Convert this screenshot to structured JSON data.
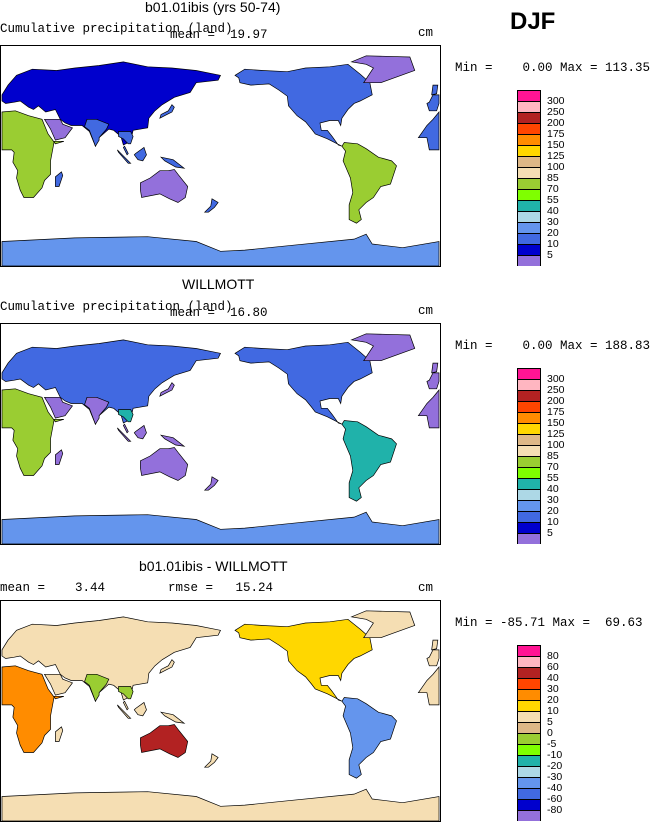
{
  "header": {
    "season": "DJF"
  },
  "panels": [
    {
      "title": "b01.01ibis (yrs 50-74)",
      "subtitle": "Cumulative precipitation (land)",
      "stat1": "mean =  19.97",
      "stat2": "",
      "units": "cm",
      "minmax": "Min =    0.00 Max = 113.35",
      "legend": {
        "labels": [
          "300",
          "250",
          "200",
          "175",
          "150",
          "125",
          "100",
          "85",
          "70",
          "55",
          "40",
          "30",
          "20",
          "10",
          "5"
        ],
        "colors": [
          "#ff1493",
          "#ffb6c1",
          "#b22222",
          "#ff4500",
          "#ff8c00",
          "#ffd700",
          "#deb887",
          "#f5deb3",
          "#9acd32",
          "#7fff00",
          "#20b2aa",
          "#add8e6",
          "#6495ed",
          "#4169e1",
          "#0000cd",
          "#9370db"
        ]
      }
    },
    {
      "title": "WILLMOTT",
      "subtitle": "Cumulative precipitation (land)",
      "stat1": "mean =  16.80",
      "stat2": "",
      "units": "cm",
      "minmax": "Min =    0.00 Max = 188.83",
      "legend": {
        "labels": [
          "300",
          "250",
          "200",
          "175",
          "150",
          "125",
          "100",
          "85",
          "70",
          "55",
          "40",
          "30",
          "20",
          "10",
          "5"
        ],
        "colors": [
          "#ff1493",
          "#ffb6c1",
          "#b22222",
          "#ff4500",
          "#ff8c00",
          "#ffd700",
          "#deb887",
          "#f5deb3",
          "#9acd32",
          "#7fff00",
          "#20b2aa",
          "#add8e6",
          "#6495ed",
          "#4169e1",
          "#0000cd",
          "#9370db"
        ]
      }
    },
    {
      "title": "b01.01ibis - WILLMOTT",
      "subtitle": "",
      "stat1": "mean =    3.44",
      "stat2": "rmse =   15.24",
      "units": "cm",
      "minmax": "Min = -85.71 Max =  69.63",
      "legend": {
        "labels": [
          "80",
          "60",
          "40",
          "30",
          "20",
          "10",
          "5",
          "0",
          "-5",
          "-10",
          "-20",
          "-30",
          "-40",
          "-60",
          "-80"
        ],
        "colors": [
          "#ff1493",
          "#ffb6c1",
          "#b22222",
          "#ff4500",
          "#ff8c00",
          "#ffd700",
          "#f5deb3",
          "#deb887",
          "#9acd32",
          "#7fff00",
          "#20b2aa",
          "#add8e6",
          "#6495ed",
          "#4169e1",
          "#0000cd",
          "#9370db"
        ]
      }
    }
  ]
}
